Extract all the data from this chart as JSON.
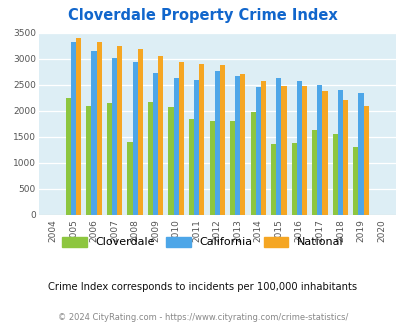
{
  "title": "Cloverdale Property Crime Index",
  "years": [
    2004,
    2005,
    2006,
    2007,
    2008,
    2009,
    2010,
    2011,
    2012,
    2013,
    2014,
    2015,
    2016,
    2017,
    2018,
    2019,
    2020
  ],
  "cloverdale": [
    0,
    2250,
    2100,
    2150,
    1400,
    2175,
    2075,
    1850,
    1800,
    1800,
    1975,
    1350,
    1375,
    1625,
    1550,
    1300,
    0
  ],
  "california": [
    0,
    3325,
    3150,
    3025,
    2950,
    2725,
    2625,
    2600,
    2775,
    2675,
    2450,
    2625,
    2575,
    2500,
    2400,
    2350,
    0
  ],
  "national": [
    0,
    3400,
    3325,
    3250,
    3200,
    3050,
    2950,
    2900,
    2875,
    2700,
    2575,
    2475,
    2475,
    2375,
    2200,
    2100,
    0
  ],
  "cloverdale_color": "#8dc63f",
  "california_color": "#4da6e8",
  "national_color": "#f5a623",
  "bg_color": "#ddeef5",
  "ylim": [
    0,
    3500
  ],
  "yticks": [
    0,
    500,
    1000,
    1500,
    2000,
    2500,
    3000,
    3500
  ],
  "title_color": "#1166cc",
  "subtitle": "Crime Index corresponds to incidents per 100,000 inhabitants",
  "footer": "© 2024 CityRating.com - https://www.cityrating.com/crime-statistics/",
  "legend_labels": [
    "Cloverdale",
    "California",
    "National"
  ],
  "bar_width": 0.25
}
